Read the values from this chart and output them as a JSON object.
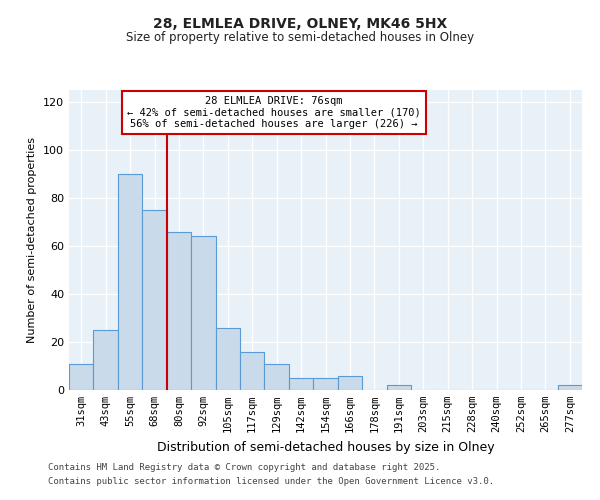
{
  "title1": "28, ELMLEA DRIVE, OLNEY, MK46 5HX",
  "title2": "Size of property relative to semi-detached houses in Olney",
  "xlabel": "Distribution of semi-detached houses by size in Olney",
  "ylabel": "Number of semi-detached properties",
  "categories": [
    "31sqm",
    "43sqm",
    "55sqm",
    "68sqm",
    "80sqm",
    "92sqm",
    "105sqm",
    "117sqm",
    "129sqm",
    "142sqm",
    "154sqm",
    "166sqm",
    "178sqm",
    "191sqm",
    "203sqm",
    "215sqm",
    "228sqm",
    "240sqm",
    "252sqm",
    "265sqm",
    "277sqm"
  ],
  "values": [
    11,
    25,
    90,
    75,
    66,
    64,
    26,
    16,
    11,
    5,
    5,
    6,
    0,
    2,
    0,
    0,
    0,
    0,
    0,
    0,
    2
  ],
  "bar_color": "#c9daea",
  "bar_edge_color": "#5b9bd5",
  "vline_index": 3.5,
  "vline_color": "#cc0000",
  "vline_label": "28 ELMLEA DRIVE: 76sqm",
  "annotation_smaller": "← 42% of semi-detached houses are smaller (170)",
  "annotation_larger": "56% of semi-detached houses are larger (226) →",
  "box_color": "#cc0000",
  "ylim": [
    0,
    125
  ],
  "yticks": [
    0,
    20,
    40,
    60,
    80,
    100,
    120
  ],
  "footer1": "Contains HM Land Registry data © Crown copyright and database right 2025.",
  "footer2": "Contains public sector information licensed under the Open Government Licence v3.0.",
  "background_color": "#ffffff",
  "plot_background": "#e8f0f8"
}
